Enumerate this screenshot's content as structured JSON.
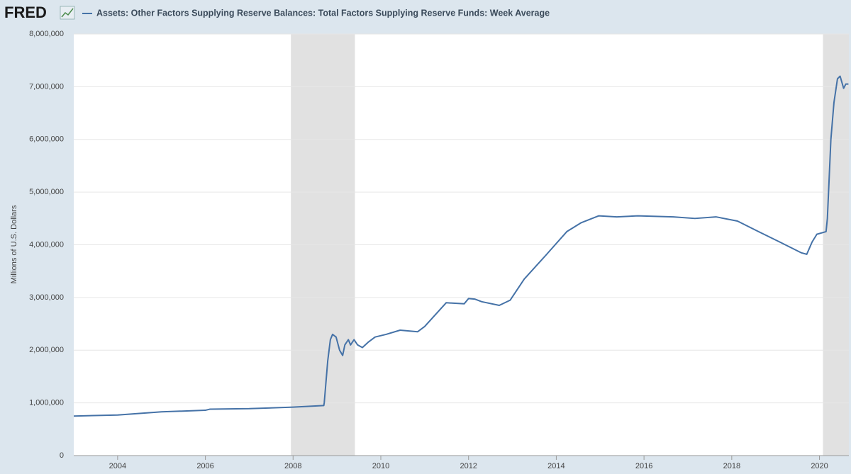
{
  "chart_data": {
    "type": "line",
    "logo": "FRED",
    "ylabel": "Millions of U.S. Dollars",
    "xlim": [
      2003.0,
      2020.67
    ],
    "ylim": [
      0,
      8000000
    ],
    "xticks": [
      2004,
      2006,
      2008,
      2010,
      2012,
      2014,
      2016,
      2018,
      2020
    ],
    "yticks": [
      0,
      {
        "value": 1000000,
        "label": "1,000,000"
      },
      {
        "value": 2000000,
        "label": "2,000,000"
      },
      {
        "value": 3000000,
        "label": "3,000,000"
      },
      {
        "value": 4000000,
        "label": "4,000,000"
      },
      {
        "value": 5000000,
        "label": "5,000,000"
      },
      {
        "value": 6000000,
        "label": "6,000,000"
      },
      {
        "value": 7000000,
        "label": "7,000,000"
      },
      {
        "value": 8000000,
        "label": "8,000,000"
      }
    ],
    "grid": true,
    "recessions": [
      [
        2007.95,
        2009.41
      ],
      [
        2020.08,
        2020.67
      ]
    ],
    "x": [
      2003.0,
      2004.0,
      2005.0,
      2006.0,
      2006.1,
      2007.0,
      2008.0,
      2008.7,
      2008.71,
      2008.79,
      2008.85,
      2008.9,
      2008.98,
      2009.06,
      2009.13,
      2009.18,
      2009.26,
      2009.31,
      2009.39,
      2009.47,
      2009.58,
      2009.71,
      2009.87,
      2010.12,
      2010.44,
      2010.84,
      2011.0,
      2011.49,
      2011.9,
      2012.0,
      2012.14,
      2012.3,
      2012.7,
      2012.95,
      2013.27,
      2013.76,
      2014.24,
      2014.57,
      2014.97,
      2015.38,
      2015.86,
      2016.67,
      2017.16,
      2017.64,
      2018.13,
      2018.61,
      2019.1,
      2019.58,
      2019.71,
      2019.83,
      2019.94,
      2020.15,
      2020.18,
      2020.26,
      2020.33,
      2020.41,
      2020.47,
      2020.55,
      2020.6,
      2020.66
    ],
    "series": [
      {
        "name": "Assets: Other Factors Supplying Reserve Balances: Total Factors Supplying Reserve Funds: Week Average",
        "color": "#4572a7",
        "values": [
          750000,
          770000,
          830000,
          860000,
          880000,
          890000,
          920000,
          950000,
          1000000,
          1800000,
          2200000,
          2300000,
          2250000,
          2000000,
          1900000,
          2100000,
          2200000,
          2100000,
          2200000,
          2100000,
          2050000,
          2150000,
          2250000,
          2300000,
          2380000,
          2350000,
          2450000,
          2900000,
          2880000,
          2980000,
          2970000,
          2920000,
          2850000,
          2950000,
          3350000,
          3800000,
          4250000,
          4420000,
          4550000,
          4530000,
          4550000,
          4530000,
          4500000,
          4530000,
          4450000,
          4250000,
          4050000,
          3850000,
          3820000,
          4050000,
          4200000,
          4250000,
          4500000,
          6000000,
          6700000,
          7150000,
          7200000,
          6970000,
          7050000,
          7050000
        ]
      }
    ]
  }
}
